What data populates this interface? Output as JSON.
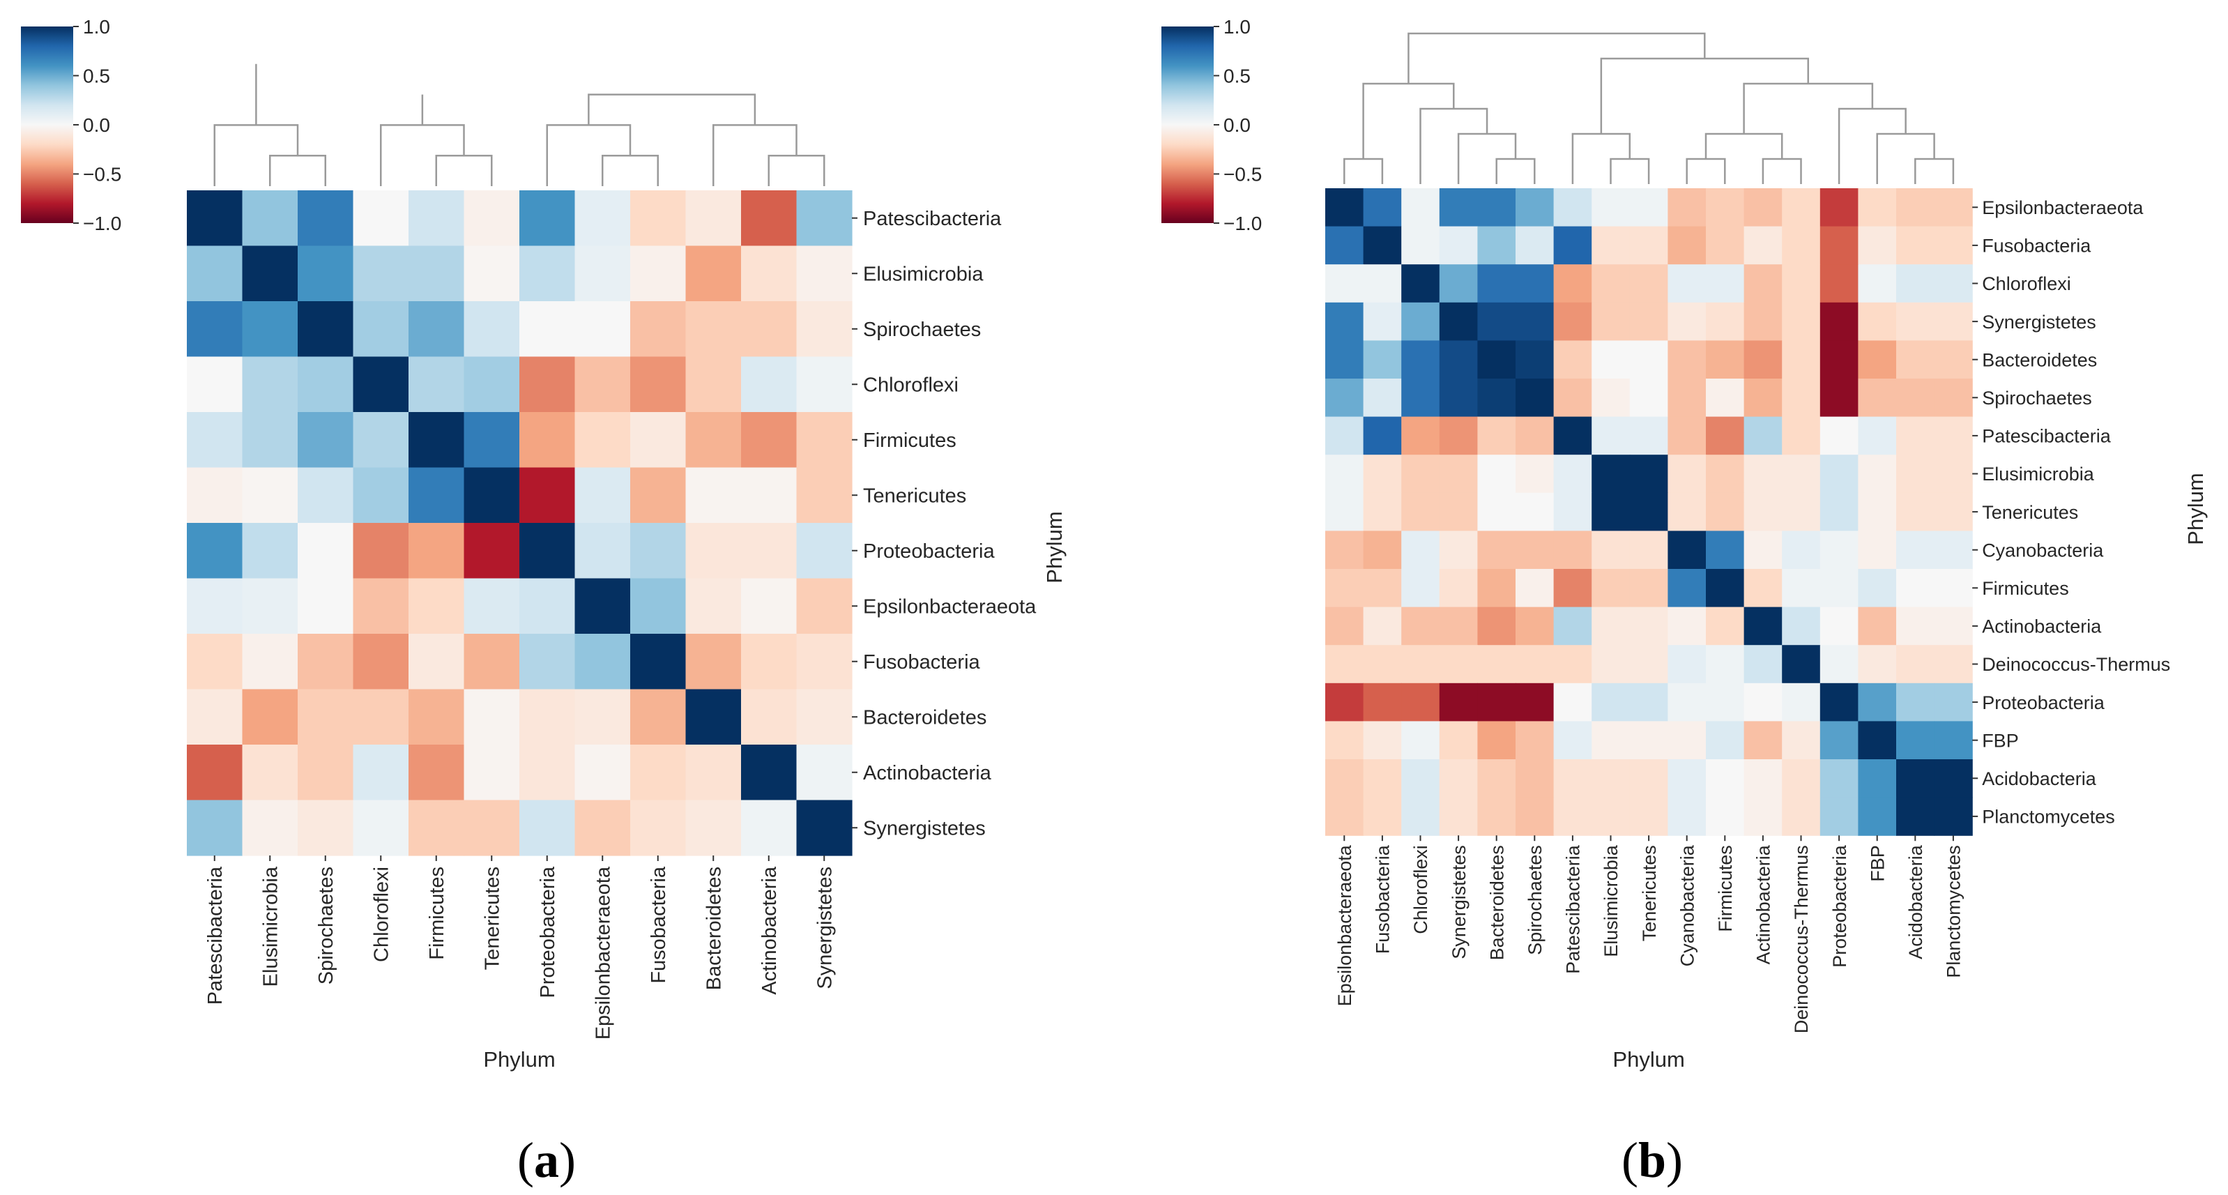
{
  "colormap": {
    "name": "RdBu",
    "stops": [
      "#67001f",
      "#b2182b",
      "#d6604d",
      "#f4a582",
      "#fddbc7",
      "#f7f7f7",
      "#d1e5f0",
      "#92c5de",
      "#4393c3",
      "#2166ac",
      "#053061"
    ],
    "min": -1.0,
    "max": 1.0
  },
  "chart_data": [
    {
      "type": "heatmap",
      "title": "",
      "panel_label": "(a)",
      "panel_letter": "a",
      "xlabel": "Phylum",
      "ylabel": "Phylum",
      "colorbar": {
        "ticks": [
          "1.0",
          "0.5",
          "0.0",
          "−0.5",
          "−1.0"
        ],
        "tick_values": [
          1.0,
          0.5,
          0.0,
          -0.5,
          -1.0
        ],
        "range": [
          -1.0,
          1.0
        ]
      },
      "categories": [
        "Patescibacteria",
        "Elusimicrobia",
        "Spirochaetes",
        "Chloroflexi",
        "Firmicutes",
        "Tenericutes",
        "Proteobacteria",
        "Epsilonbacteraeota",
        "Fusobacteria",
        "Bacteroidetes",
        "Actinobacteria",
        "Synergistetes"
      ],
      "values": [
        [
          1.0,
          0.4,
          0.7,
          0.0,
          0.2,
          -0.05,
          0.6,
          0.1,
          -0.2,
          -0.1,
          -0.6,
          0.4
        ],
        [
          0.4,
          1.0,
          0.6,
          0.3,
          0.3,
          -0.02,
          0.25,
          0.08,
          -0.05,
          -0.4,
          -0.15,
          -0.05
        ],
        [
          0.7,
          0.6,
          1.0,
          0.35,
          0.5,
          0.2,
          0.0,
          0.0,
          -0.3,
          -0.25,
          -0.25,
          -0.1
        ],
        [
          0.0,
          0.3,
          0.35,
          1.0,
          0.3,
          0.35,
          -0.5,
          -0.3,
          -0.45,
          -0.25,
          0.15,
          0.05
        ],
        [
          0.2,
          0.3,
          0.5,
          0.3,
          1.0,
          0.7,
          -0.4,
          -0.2,
          -0.1,
          -0.35,
          -0.45,
          -0.25
        ],
        [
          -0.05,
          -0.02,
          0.2,
          0.35,
          0.7,
          1.0,
          -0.8,
          0.15,
          -0.35,
          -0.03,
          -0.03,
          -0.25
        ],
        [
          0.6,
          0.25,
          0.0,
          -0.5,
          -0.4,
          -0.8,
          1.0,
          0.2,
          0.3,
          -0.12,
          -0.12,
          0.2
        ],
        [
          0.1,
          0.08,
          0.0,
          -0.3,
          -0.2,
          0.15,
          0.2,
          1.0,
          0.4,
          -0.1,
          -0.03,
          -0.25
        ],
        [
          -0.2,
          -0.05,
          -0.3,
          -0.45,
          -0.1,
          -0.35,
          0.3,
          0.4,
          1.0,
          -0.35,
          -0.2,
          -0.15
        ],
        [
          -0.1,
          -0.4,
          -0.25,
          -0.25,
          -0.35,
          -0.03,
          -0.12,
          -0.1,
          -0.35,
          1.0,
          -0.15,
          -0.1
        ],
        [
          -0.6,
          -0.15,
          -0.25,
          0.15,
          -0.45,
          -0.03,
          -0.12,
          -0.03,
          -0.2,
          -0.15,
          1.0,
          0.05
        ],
        [
          0.4,
          -0.05,
          -0.1,
          0.05,
          -0.25,
          -0.25,
          0.2,
          -0.25,
          -0.15,
          -0.1,
          0.05,
          1.0
        ]
      ]
    },
    {
      "type": "heatmap",
      "title": "",
      "panel_label": "(b)",
      "panel_letter": "b",
      "xlabel": "Phylum",
      "ylabel": "Phylum",
      "colorbar": {
        "ticks": [
          "1.0",
          "0.5",
          "0.0",
          "−0.5",
          "−1.0"
        ],
        "tick_values": [
          1.0,
          0.5,
          0.0,
          -0.5,
          -1.0
        ],
        "range": [
          -1.0,
          1.0
        ]
      },
      "categories": [
        "Epsilonbacteraeota",
        "Fusobacteria",
        "Chloroflexi",
        "Synergistetes",
        "Bacteroidetes",
        "Spirochaetes",
        "Patescibacteria",
        "Elusimicrobia",
        "Tenericutes",
        "Cyanobacteria",
        "Firmicutes",
        "Actinobacteria",
        "Deinococcus-Thermus",
        "Proteobacteria",
        "FBP",
        "Acidobacteria",
        "Planctomycetes"
      ],
      "values": [
        [
          1.0,
          0.75,
          0.05,
          0.7,
          0.7,
          0.5,
          0.2,
          0.05,
          0.05,
          -0.3,
          -0.25,
          -0.3,
          -0.2,
          -0.7,
          -0.2,
          -0.25,
          -0.25
        ],
        [
          0.75,
          1.0,
          0.05,
          0.1,
          0.4,
          0.15,
          0.8,
          -0.15,
          -0.15,
          -0.35,
          -0.25,
          -0.1,
          -0.2,
          -0.6,
          -0.1,
          -0.2,
          -0.2
        ],
        [
          0.05,
          0.05,
          1.0,
          0.5,
          0.75,
          0.75,
          -0.4,
          -0.25,
          -0.25,
          0.1,
          0.1,
          -0.3,
          -0.2,
          -0.6,
          0.05,
          0.15,
          0.15
        ],
        [
          0.7,
          0.1,
          0.5,
          1.0,
          0.9,
          0.9,
          -0.45,
          -0.25,
          -0.25,
          -0.1,
          -0.15,
          -0.3,
          -0.2,
          -0.9,
          -0.2,
          -0.15,
          -0.15
        ],
        [
          0.7,
          0.4,
          0.75,
          0.9,
          1.0,
          0.95,
          -0.25,
          0.0,
          0.0,
          -0.3,
          -0.35,
          -0.45,
          -0.2,
          -0.9,
          -0.4,
          -0.25,
          -0.25
        ],
        [
          0.5,
          0.15,
          0.75,
          0.9,
          0.95,
          1.0,
          -0.3,
          -0.05,
          0.0,
          -0.3,
          -0.05,
          -0.35,
          -0.2,
          -0.9,
          -0.3,
          -0.3,
          -0.3
        ],
        [
          0.2,
          0.8,
          -0.4,
          -0.45,
          -0.25,
          -0.3,
          1.0,
          0.1,
          0.1,
          -0.3,
          -0.5,
          0.3,
          -0.2,
          0.0,
          0.1,
          -0.15,
          -0.15
        ],
        [
          0.05,
          -0.15,
          -0.25,
          -0.25,
          0.0,
          -0.05,
          0.1,
          1.0,
          1.0,
          -0.15,
          -0.25,
          -0.1,
          -0.1,
          0.2,
          -0.05,
          -0.15,
          -0.15
        ],
        [
          0.05,
          -0.15,
          -0.25,
          -0.25,
          0.0,
          0.0,
          0.1,
          1.0,
          1.0,
          -0.15,
          -0.25,
          -0.1,
          -0.1,
          0.2,
          -0.05,
          -0.15,
          -0.15
        ],
        [
          -0.3,
          -0.35,
          0.1,
          -0.1,
          -0.3,
          -0.3,
          -0.3,
          -0.15,
          -0.15,
          1.0,
          0.7,
          -0.05,
          0.1,
          0.05,
          -0.05,
          0.1,
          0.1
        ],
        [
          -0.25,
          -0.25,
          0.1,
          -0.15,
          -0.35,
          -0.05,
          -0.5,
          -0.25,
          -0.25,
          0.7,
          1.0,
          -0.2,
          0.05,
          0.05,
          0.15,
          0.0,
          0.0
        ],
        [
          -0.3,
          -0.1,
          -0.3,
          -0.3,
          -0.45,
          -0.35,
          0.3,
          -0.1,
          -0.1,
          -0.05,
          -0.2,
          1.0,
          0.2,
          0.0,
          -0.3,
          -0.05,
          -0.05
        ],
        [
          -0.2,
          -0.2,
          -0.2,
          -0.2,
          -0.2,
          -0.2,
          -0.2,
          -0.1,
          -0.1,
          0.1,
          0.05,
          0.2,
          1.0,
          0.05,
          -0.1,
          -0.15,
          -0.15
        ],
        [
          -0.7,
          -0.6,
          -0.6,
          -0.9,
          -0.9,
          -0.9,
          0.0,
          0.2,
          0.2,
          0.05,
          0.05,
          0.0,
          0.05,
          1.0,
          0.55,
          0.35,
          0.35
        ],
        [
          -0.2,
          -0.1,
          0.05,
          -0.2,
          -0.4,
          -0.3,
          0.1,
          -0.05,
          -0.05,
          -0.05,
          0.15,
          -0.3,
          -0.1,
          0.55,
          1.0,
          0.6,
          0.6
        ],
        [
          -0.25,
          -0.2,
          0.15,
          -0.15,
          -0.25,
          -0.3,
          -0.15,
          -0.15,
          -0.15,
          0.1,
          0.0,
          -0.05,
          -0.15,
          0.35,
          0.6,
          1.0,
          1.0
        ],
        [
          -0.25,
          -0.2,
          0.15,
          -0.15,
          -0.25,
          -0.3,
          -0.15,
          -0.15,
          -0.15,
          0.1,
          0.0,
          -0.05,
          -0.15,
          0.35,
          0.6,
          1.0,
          1.0
        ]
      ]
    }
  ]
}
